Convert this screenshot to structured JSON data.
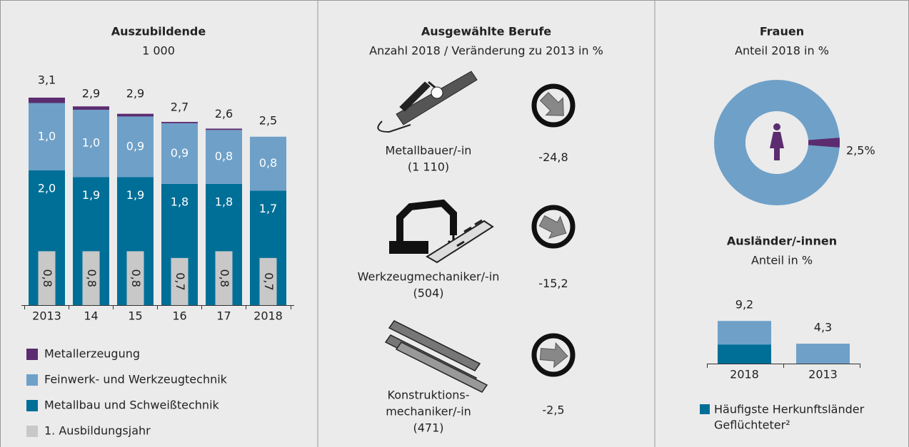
{
  "students": {
    "title": "Auszubildende",
    "subtitle": "1 000",
    "categories": [
      "2013",
      "14",
      "15",
      "16",
      "17",
      "2018"
    ],
    "totals": [
      3.1,
      2.9,
      2.9,
      2.7,
      2.6,
      2.5
    ],
    "total_labels": [
      "3,1",
      "2,9",
      "2,9",
      "2,7",
      "2,6",
      "2,5"
    ],
    "series": [
      {
        "name": "Metallerzeugung",
        "color": "#5b2c6f",
        "values": [
          0.08,
          0.05,
          0.04,
          0.02,
          0.02,
          0
        ]
      },
      {
        "name": "Feinwerk- und Werkzeugtechnik",
        "color": "#6fa0c8",
        "values": [
          1.0,
          1.0,
          0.9,
          0.9,
          0.8,
          0.8
        ],
        "value_labels": [
          "1,0",
          "1,0",
          "0,9",
          "0,9",
          "0,8",
          "0,8"
        ]
      },
      {
        "name": "Metallbau und Schweißtechnik",
        "color": "#006f97",
        "values": [
          2.0,
          1.9,
          1.9,
          1.8,
          1.8,
          1.7
        ],
        "value_labels": [
          "2,0",
          "1,9",
          "1,9",
          "1,8",
          "1,8",
          "1,7"
        ]
      }
    ],
    "first_year": {
      "name": "1. Ausbildungsjahr",
      "color": "#c8c8c8",
      "values": [
        0.8,
        0.8,
        0.8,
        0.7,
        0.8,
        0.7
      ],
      "value_labels": [
        "0,8",
        "0,8",
        "0,8",
        "0,7",
        "0,8",
        "0,7"
      ]
    }
  },
  "professions": {
    "title": "Ausgewählte Berufe",
    "subtitle": "Anzahl 2018 / Veränderung zu 2013 in %",
    "items": [
      {
        "name": [
          "Metallbauer/-in"
        ],
        "count": "(1 110)",
        "change": -24.8,
        "change_label": "-24,8"
      },
      {
        "name": [
          "Werkzeugmechaniker/-in"
        ],
        "count": "(504)",
        "change": -15.2,
        "change_label": "-15,2"
      },
      {
        "name": [
          "Konstruktions-",
          "mechaniker/-in"
        ],
        "count": "(471)",
        "change": -2.5,
        "change_label": "-2,5"
      }
    ]
  },
  "women": {
    "title": "Frauen",
    "subtitle": "Anteil 2018 in %",
    "value": 2.5,
    "value_label": "2,5%",
    "color": "#5b2c6f",
    "rest_color": "#6fa0c8"
  },
  "foreigners": {
    "title": "Ausländer/-innen",
    "subtitle": "Anteil in %",
    "categories": [
      "2018",
      "2013"
    ],
    "values": [
      9.2,
      4.3
    ],
    "value_labels": [
      "9,2",
      "4,3"
    ],
    "color": "#6fa0c8",
    "series": [
      {
        "name": [
          "Häufigste Herkunftsländer",
          "Geflüchteter²"
        ],
        "color": "#006f97",
        "values": [
          4.1,
          0
        ]
      }
    ]
  }
}
